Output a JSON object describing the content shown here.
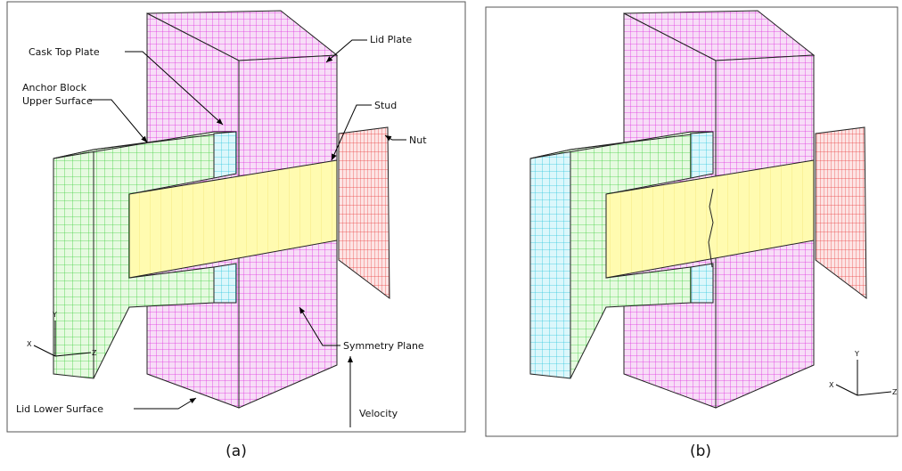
{
  "panel_a": {
    "labels": {
      "lid_plate": "Lid Plate",
      "cask_top_plate": "Cask Top Plate",
      "anchor_block": [
        "Anchor Block",
        "Upper Surface"
      ],
      "stud": "Stud",
      "nut": "Nut",
      "symmetry_plane": "Symmetry Plane",
      "lid_lower_surface": "Lid Lower Surface",
      "velocity": "Velocity"
    },
    "axes": {
      "x": "X",
      "y": "Y",
      "z": "Z"
    },
    "caption": "(a)"
  },
  "panel_b": {
    "axes": {
      "x": "X",
      "y": "Y",
      "z": "Z"
    },
    "caption": "(b)"
  }
}
